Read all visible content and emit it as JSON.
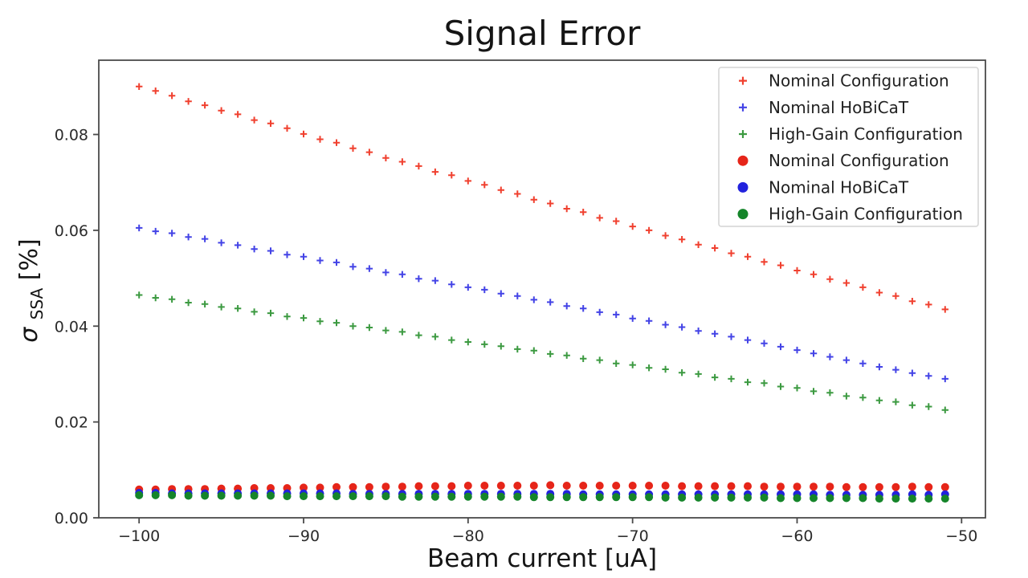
{
  "chart_data": {
    "type": "scatter",
    "title": "Signal Error",
    "xlabel": "Beam current [uA]",
    "ylabel": "σ_SSA [%]",
    "ylabel_parts": {
      "sigma": "σ",
      "sub": "SSA",
      "unit": " [%]"
    },
    "xlim": [
      -102.45,
      -48.55
    ],
    "ylim": [
      0,
      0.0955
    ],
    "xticks": [
      -100,
      -90,
      -80,
      -70,
      -60,
      -50
    ],
    "yticks": [
      0.0,
      0.02,
      0.04,
      0.06,
      0.08
    ],
    "grid": false,
    "legend_position": "upper right",
    "x": [
      -100,
      -99,
      -98,
      -97,
      -96,
      -95,
      -94,
      -93,
      -92,
      -91,
      -90,
      -89,
      -88,
      -87,
      -86,
      -85,
      -84,
      -83,
      -82,
      -81,
      -80,
      -79,
      -78,
      -77,
      -76,
      -75,
      -74,
      -73,
      -72,
      -71,
      -70,
      -69,
      -68,
      -67,
      -66,
      -65,
      -64,
      -63,
      -62,
      -61,
      -60,
      -59,
      -58,
      -57,
      -56,
      -55,
      -54,
      -53,
      -52,
      -51
    ],
    "series": [
      {
        "name": "Nominal Configuration",
        "marker": "plus",
        "color": "#f0402f",
        "values": [
          0.09,
          0.0891,
          0.0881,
          0.0869,
          0.0861,
          0.085,
          0.0842,
          0.083,
          0.0823,
          0.0813,
          0.0801,
          0.079,
          0.0783,
          0.0771,
          0.0763,
          0.0751,
          0.0743,
          0.0734,
          0.0722,
          0.0715,
          0.0703,
          0.0695,
          0.0684,
          0.0676,
          0.0664,
          0.0656,
          0.0645,
          0.0638,
          0.0626,
          0.0619,
          0.0608,
          0.06,
          0.0589,
          0.0581,
          0.057,
          0.0563,
          0.0552,
          0.0545,
          0.0534,
          0.0527,
          0.0516,
          0.0508,
          0.0498,
          0.049,
          0.0481,
          0.047,
          0.0463,
          0.0452,
          0.0445,
          0.0435
        ]
      },
      {
        "name": "Nominal HoBiCaT",
        "marker": "plus",
        "color": "#4343e6",
        "values": [
          0.0605,
          0.0598,
          0.0594,
          0.0586,
          0.0582,
          0.0574,
          0.0569,
          0.0561,
          0.0557,
          0.0549,
          0.0545,
          0.0537,
          0.0533,
          0.0524,
          0.052,
          0.0512,
          0.0508,
          0.0499,
          0.0495,
          0.0487,
          0.0481,
          0.0476,
          0.0468,
          0.0463,
          0.0455,
          0.045,
          0.0442,
          0.0437,
          0.0429,
          0.0424,
          0.0416,
          0.0411,
          0.0403,
          0.0398,
          0.039,
          0.0384,
          0.0378,
          0.0371,
          0.0364,
          0.0357,
          0.035,
          0.0343,
          0.0336,
          0.0329,
          0.0322,
          0.0315,
          0.0309,
          0.0302,
          0.0296,
          0.029
        ]
      },
      {
        "name": "High-Gain Configuration",
        "marker": "plus",
        "color": "#3c9a41",
        "values": [
          0.0465,
          0.0459,
          0.0456,
          0.0449,
          0.0446,
          0.044,
          0.0437,
          0.043,
          0.0427,
          0.042,
          0.0417,
          0.041,
          0.0407,
          0.04,
          0.0397,
          0.0391,
          0.0388,
          0.0381,
          0.0378,
          0.0371,
          0.0367,
          0.0362,
          0.0358,
          0.0352,
          0.0349,
          0.0342,
          0.0339,
          0.0332,
          0.0329,
          0.0322,
          0.0319,
          0.0313,
          0.031,
          0.0303,
          0.03,
          0.0293,
          0.029,
          0.0283,
          0.0281,
          0.0274,
          0.0271,
          0.0264,
          0.0261,
          0.0254,
          0.0251,
          0.0245,
          0.0242,
          0.0235,
          0.0232,
          0.0225
        ]
      },
      {
        "name": "Nominal Configuration",
        "marker": "dot",
        "color": "#e62519",
        "values": [
          0.0059,
          0.0059,
          0.006,
          0.006,
          0.006,
          0.0061,
          0.0061,
          0.0062,
          0.0062,
          0.0062,
          0.0063,
          0.0063,
          0.0064,
          0.0064,
          0.0064,
          0.0065,
          0.0065,
          0.0066,
          0.0066,
          0.0066,
          0.0067,
          0.0067,
          0.0067,
          0.0067,
          0.0067,
          0.0068,
          0.0067,
          0.0067,
          0.0067,
          0.0067,
          0.0067,
          0.0067,
          0.0067,
          0.0066,
          0.0066,
          0.0066,
          0.0066,
          0.0066,
          0.0065,
          0.0065,
          0.0065,
          0.0065,
          0.0065,
          0.0064,
          0.0064,
          0.0064,
          0.0064,
          0.0065,
          0.0064,
          0.0064
        ]
      },
      {
        "name": "Nominal HoBiCaT",
        "marker": "dot",
        "color": "#2222dd",
        "values": [
          0.0052,
          0.0052,
          0.0051,
          0.0051,
          0.0051,
          0.0051,
          0.0051,
          0.0051,
          0.0051,
          0.0051,
          0.0051,
          0.0051,
          0.0051,
          0.005,
          0.005,
          0.005,
          0.005,
          0.005,
          0.005,
          0.005,
          0.005,
          0.005,
          0.005,
          0.005,
          0.005,
          0.005,
          0.005,
          0.0049,
          0.0049,
          0.0049,
          0.0049,
          0.0049,
          0.0049,
          0.0049,
          0.0049,
          0.0049,
          0.0049,
          0.0049,
          0.0049,
          0.0049,
          0.0049,
          0.0049,
          0.0048,
          0.0048,
          0.0048,
          0.0048,
          0.0048,
          0.0049,
          0.0048,
          0.0049
        ]
      },
      {
        "name": "High-Gain Configuration",
        "marker": "dot",
        "color": "#15852a",
        "values": [
          0.0047,
          0.0047,
          0.0047,
          0.0046,
          0.0046,
          0.0046,
          0.0046,
          0.0046,
          0.0046,
          0.0045,
          0.0045,
          0.0045,
          0.0045,
          0.0045,
          0.0045,
          0.0045,
          0.0044,
          0.0044,
          0.0044,
          0.0044,
          0.0044,
          0.0044,
          0.0044,
          0.0044,
          0.0043,
          0.0043,
          0.0043,
          0.0043,
          0.0043,
          0.0043,
          0.0043,
          0.0043,
          0.0042,
          0.0042,
          0.0042,
          0.0042,
          0.0042,
          0.0042,
          0.0042,
          0.0041,
          0.0041,
          0.0041,
          0.0041,
          0.0041,
          0.0041,
          0.004,
          0.004,
          0.004,
          0.004,
          0.004
        ]
      }
    ]
  }
}
